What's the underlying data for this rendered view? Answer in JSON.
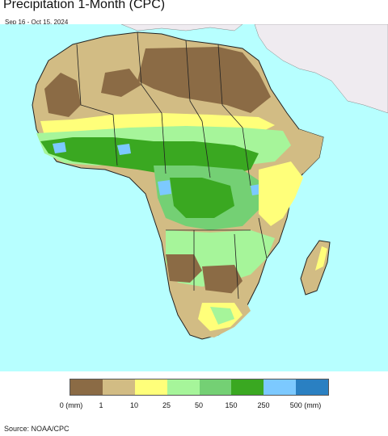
{
  "title": "Precipitation 1-Month (CPC)",
  "subtitle": "Sep 16 - Oct 15, 2024",
  "source": "Source: NOAA/CPC",
  "legend": {
    "labels": [
      "0 (mm)",
      "1",
      "10",
      "25",
      "50",
      "150",
      "250",
      "500 (mm)"
    ],
    "colors": [
      "#8b6b45",
      "#d2bc84",
      "#ffff7a",
      "#a6f59a",
      "#74d074",
      "#3aa821",
      "#7cc9ff",
      "#2a80c2"
    ]
  },
  "map_colors": {
    "ocean": "#b7ffff",
    "outside": "#efebf0"
  }
}
